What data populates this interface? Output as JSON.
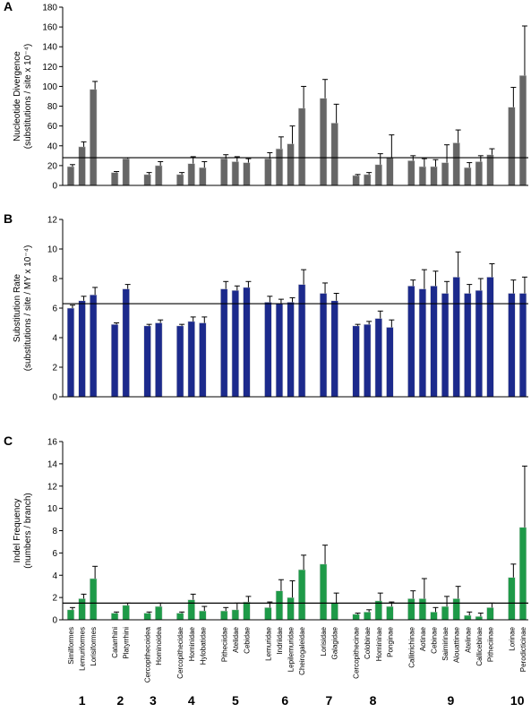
{
  "chart_data": [
    {
      "type": "bar",
      "panel": "A",
      "ylabel": [
        "Nucleotide Divergence",
        "(substitutions / site x 10⁻⁴)"
      ],
      "color": "#666666",
      "ylim": [
        0,
        180
      ],
      "yticks": [
        0,
        20,
        40,
        60,
        80,
        100,
        120,
        140,
        160,
        180
      ],
      "reference_line": 28,
      "values": [
        19,
        39,
        97,
        13,
        27,
        11,
        20,
        11,
        22,
        18,
        27,
        24,
        23,
        27,
        37,
        42,
        78,
        88,
        63,
        10,
        11,
        21,
        28,
        25,
        19,
        19,
        23,
        43,
        18,
        24,
        31,
        79,
        111
      ],
      "errors": [
        2,
        5,
        8,
        1,
        1,
        2,
        4,
        2,
        7,
        6,
        4,
        5,
        4,
        6,
        12,
        18,
        22,
        19,
        19,
        1,
        2,
        11,
        23,
        5,
        8,
        7,
        18,
        13,
        5,
        6,
        6,
        20,
        50
      ]
    },
    {
      "type": "bar",
      "panel": "B",
      "ylabel": [
        "Substitution Rate",
        "(substitutions / site / MY  x 10⁻⁴)"
      ],
      "color": "#1c2a8c",
      "ylim": [
        0,
        12
      ],
      "yticks": [
        0,
        2,
        4,
        6,
        8,
        10,
        12
      ],
      "reference_line": 6.3,
      "values": [
        6.0,
        6.5,
        6.9,
        4.9,
        7.3,
        4.8,
        5.0,
        4.8,
        5.1,
        5.0,
        7.3,
        7.2,
        7.4,
        6.4,
        6.3,
        6.4,
        7.6,
        7.0,
        6.5,
        4.8,
        4.9,
        5.3,
        4.7,
        7.5,
        7.3,
        7.5,
        7.0,
        8.1,
        7.0,
        7.2,
        8.1,
        7.0,
        7.0
      ],
      "errors": [
        0.2,
        0.3,
        0.5,
        0.1,
        0.3,
        0.1,
        0.2,
        0.1,
        0.3,
        0.4,
        0.5,
        0.3,
        0.4,
        0.4,
        0.3,
        0.3,
        1.0,
        0.7,
        0.5,
        0.1,
        0.2,
        0.5,
        0.5,
        0.4,
        1.3,
        1.0,
        0.8,
        1.7,
        0.6,
        0.8,
        0.9,
        0.9,
        1.1
      ]
    },
    {
      "type": "bar",
      "panel": "C",
      "ylabel": [
        "Indel Frequency",
        "(numbers / branch)"
      ],
      "color": "#1e9a48",
      "ylim": [
        0,
        16
      ],
      "yticks": [
        0,
        2,
        4,
        6,
        8,
        10,
        12,
        14,
        16
      ],
      "reference_line": 1.5,
      "values": [
        0.9,
        1.9,
        3.7,
        0.6,
        1.3,
        0.6,
        1.2,
        0.6,
        1.8,
        0.8,
        0.8,
        0.9,
        1.6,
        1.1,
        2.6,
        2.0,
        4.5,
        5.0,
        1.5,
        0.5,
        0.7,
        1.7,
        1.2,
        1.9,
        1.9,
        0.7,
        1.2,
        1.9,
        0.4,
        0.3,
        1.1,
        3.8,
        8.3
      ],
      "errors": [
        0.2,
        0.4,
        1.1,
        0.1,
        0.2,
        0.1,
        0.3,
        0.1,
        0.5,
        0.4,
        0.3,
        0.6,
        0.5,
        0.5,
        1.0,
        1.5,
        1.3,
        1.7,
        0.9,
        0.1,
        0.2,
        0.7,
        0.4,
        0.7,
        1.8,
        0.4,
        0.9,
        1.1,
        0.3,
        0.3,
        0.4,
        1.2,
        5.5
      ],
      "groups": [
        {
          "label": "1",
          "categories": [
            "Similformes",
            "Lemuriformes",
            "Lorisiformes"
          ]
        },
        {
          "label": "2",
          "categories": [
            "Catarrhini",
            "Platyrrhini"
          ]
        },
        {
          "label": "3",
          "categories": [
            "Cercopithecoidea",
            "Hominoidea"
          ]
        },
        {
          "label": "4",
          "categories": [
            "Cercopithecidae",
            "Hominidae",
            "Hylobatidae"
          ]
        },
        {
          "label": "5",
          "categories": [
            "Pitheciidae",
            "Atelidae",
            "Cebidae"
          ]
        },
        {
          "label": "6",
          "categories": [
            "Lemuridae",
            "Indriidae",
            "Lepilemuridae",
            "Cheirogaleidae"
          ]
        },
        {
          "label": "7",
          "categories": [
            "Lorisidae",
            "Galagidae"
          ]
        },
        {
          "label": "8",
          "categories": [
            "Cercopithecinae",
            "Colobinae",
            "Homininae",
            "Ponginae"
          ]
        },
        {
          "label": "9",
          "categories": [
            "Callitrichinae",
            "Aotinae",
            "Cebinae",
            "Saimirinae",
            "Alouattinae",
            "Atelinae",
            "Callicebinae",
            "Pitheciinae"
          ]
        },
        {
          "label": "10",
          "categories": [
            "Lorinae",
            "Perodicticinae"
          ]
        }
      ]
    }
  ]
}
